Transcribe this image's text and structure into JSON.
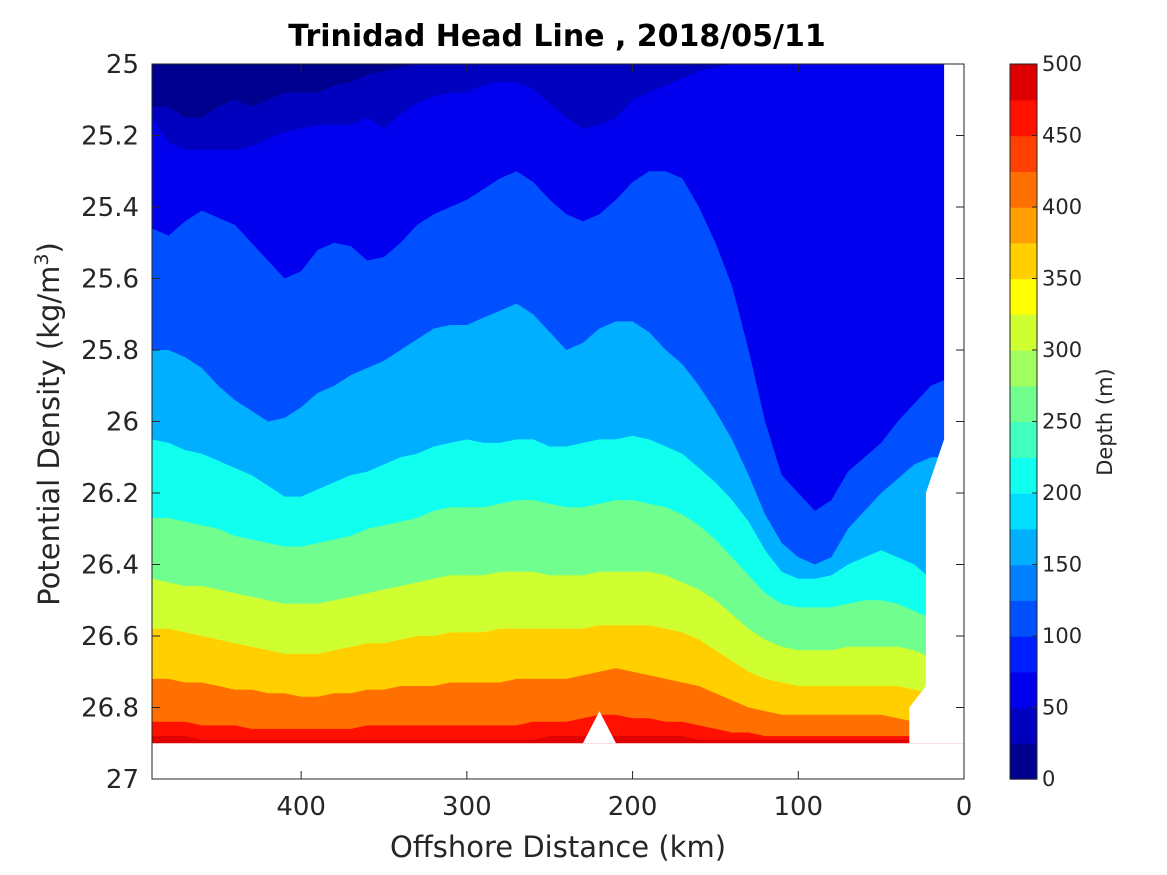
{
  "chart_data": {
    "type": "contour",
    "title": "Trinidad Head Line , 2018/05/11",
    "xlabel": "Offshore Distance (km)",
    "ylabel": "Potential Density (kg/m",
    "ylabel_sup": "3",
    "ylabel_close": ")",
    "xlim": [
      490,
      0
    ],
    "ylim": [
      25,
      27
    ],
    "x_reversed": true,
    "y_reversed": true,
    "xticks": [
      "400",
      "300",
      "200",
      "100",
      "0"
    ],
    "xtick_values": [
      400,
      300,
      200,
      100,
      0
    ],
    "yticks": [
      "25",
      "25.2",
      "25.4",
      "25.6",
      "25.8",
      "26",
      "26.2",
      "26.4",
      "26.6",
      "26.8",
      "27"
    ],
    "ytick_values": [
      25,
      25.2,
      25.4,
      25.6,
      25.8,
      26,
      26.2,
      26.4,
      26.6,
      26.8,
      27
    ],
    "colorbar": {
      "label": "Depth (m)",
      "range": [
        0,
        500
      ],
      "ticks": [
        "0",
        "50",
        "100",
        "150",
        "200",
        "250",
        "300",
        "350",
        "400",
        "450",
        "500"
      ],
      "tick_values": [
        0,
        50,
        100,
        150,
        200,
        250,
        300,
        350,
        400,
        450,
        500
      ],
      "levels": [
        0,
        25,
        50,
        75,
        100,
        125,
        150,
        175,
        200,
        225,
        250,
        275,
        300,
        325,
        350,
        375,
        400,
        425,
        450,
        475,
        500
      ],
      "colormap": "jet",
      "colors": [
        "#00008f",
        "#0000bf",
        "#0000ef",
        "#0020ff",
        "#0050ff",
        "#0080ff",
        "#00afff",
        "#00dfff",
        "#10ffef",
        "#40ffbf",
        "#70ff8f",
        "#9fff60",
        "#cfff30",
        "#ffff00",
        "#ffcf00",
        "#ff9f00",
        "#ff7000",
        "#ff4000",
        "#ff1000",
        "#df0000",
        "#af0000"
      ]
    },
    "profile_distances_km": [
      490,
      480,
      470,
      460,
      450,
      440,
      430,
      420,
      410,
      400,
      390,
      380,
      370,
      360,
      350,
      340,
      330,
      320,
      310,
      300,
      290,
      280,
      270,
      260,
      250,
      240,
      230,
      220,
      210,
      200,
      190,
      180,
      170,
      160,
      150,
      140,
      130,
      120,
      110,
      100,
      90,
      80,
      70,
      60,
      50,
      40,
      30,
      20,
      10
    ],
    "isopycnal_density_at_depth": {
      "depths_m": [
        25,
        50,
        100,
        150,
        200,
        250,
        300,
        350,
        400,
        450,
        475
      ],
      "rows": [
        [
          25.12,
          25.12,
          25.15,
          25.15,
          25.12,
          25.1,
          25.12,
          25.1,
          25.08,
          25.08,
          25.08,
          25.06,
          25.05,
          25.03,
          25.02,
          25.01,
          25.0,
          25.0,
          25.0,
          25.0,
          25.0,
          25.0,
          25.0,
          25.0,
          25.0,
          25.0,
          25.0,
          25.0,
          25.0,
          25.0,
          25.0,
          25.0,
          25.0,
          25.0,
          25.0,
          25.0,
          25.0,
          25.0,
          25.0,
          25.0,
          25.0,
          25.0,
          25.0,
          25.0,
          25.0,
          25.0,
          25.0,
          25.0,
          25.0
        ],
        [
          25.15,
          25.22,
          25.24,
          25.24,
          25.24,
          25.24,
          25.23,
          25.21,
          25.19,
          25.18,
          25.17,
          25.17,
          25.17,
          25.15,
          25.18,
          25.14,
          25.11,
          25.09,
          25.08,
          25.08,
          25.06,
          25.05,
          25.05,
          25.07,
          25.11,
          25.15,
          25.18,
          25.17,
          25.15,
          25.1,
          25.08,
          25.06,
          25.04,
          25.02,
          25.01,
          25.0,
          25.0,
          25.0,
          25.0,
          25.0,
          25.0,
          25.0,
          25.0,
          25.0,
          25.0,
          25.0,
          25.0,
          25.0,
          25.0
        ],
        [
          25.46,
          25.48,
          25.44,
          25.41,
          25.43,
          25.45,
          25.5,
          25.55,
          25.6,
          25.58,
          25.52,
          25.5,
          25.51,
          25.55,
          25.54,
          25.5,
          25.45,
          25.42,
          25.4,
          25.38,
          25.35,
          25.32,
          25.3,
          25.33,
          25.38,
          25.42,
          25.44,
          25.42,
          25.38,
          25.33,
          25.3,
          25.3,
          25.32,
          25.4,
          25.5,
          25.62,
          25.8,
          26.0,
          26.15,
          26.2,
          26.25,
          26.22,
          26.14,
          26.1,
          26.06,
          26.0,
          25.95,
          25.9,
          25.88
        ],
        [
          25.8,
          25.8,
          25.82,
          25.85,
          25.9,
          25.94,
          25.97,
          26.0,
          25.99,
          25.96,
          25.92,
          25.9,
          25.87,
          25.85,
          25.83,
          25.8,
          25.77,
          25.74,
          25.73,
          25.73,
          25.71,
          25.69,
          25.67,
          25.7,
          25.75,
          25.8,
          25.78,
          25.74,
          25.72,
          25.72,
          25.75,
          25.8,
          25.84,
          25.9,
          25.97,
          26.05,
          26.15,
          26.26,
          26.34,
          26.38,
          26.4,
          26.38,
          26.3,
          26.25,
          26.2,
          26.16,
          26.12,
          26.1,
          26.1
        ],
        [
          26.05,
          26.06,
          26.08,
          26.09,
          26.11,
          26.13,
          26.15,
          26.18,
          26.21,
          26.21,
          26.19,
          26.17,
          26.15,
          26.14,
          26.12,
          26.1,
          26.09,
          26.07,
          26.06,
          26.05,
          26.06,
          26.06,
          26.05,
          26.05,
          26.07,
          26.07,
          26.06,
          26.05,
          26.05,
          26.04,
          26.05,
          26.07,
          26.09,
          26.13,
          26.17,
          26.22,
          26.28,
          26.36,
          26.42,
          26.44,
          26.44,
          26.43,
          26.4,
          26.38,
          26.36,
          26.38,
          26.4,
          26.44,
          26.48
        ],
        [
          26.27,
          26.27,
          26.28,
          26.29,
          26.3,
          26.32,
          26.33,
          26.34,
          26.35,
          26.35,
          26.34,
          26.33,
          26.32,
          26.3,
          26.29,
          26.28,
          26.27,
          26.25,
          26.24,
          26.24,
          26.24,
          26.23,
          26.22,
          26.22,
          26.23,
          26.24,
          26.24,
          26.23,
          26.22,
          26.22,
          26.23,
          26.24,
          26.26,
          26.29,
          26.33,
          26.38,
          26.43,
          26.48,
          26.51,
          26.52,
          26.52,
          26.52,
          26.51,
          26.5,
          26.5,
          26.51,
          26.53,
          26.55,
          26.58
        ],
        [
          26.44,
          26.45,
          26.46,
          26.46,
          26.47,
          26.48,
          26.49,
          26.5,
          26.51,
          26.51,
          26.51,
          26.5,
          26.49,
          26.48,
          26.47,
          26.46,
          26.45,
          26.44,
          26.43,
          26.43,
          26.43,
          26.42,
          26.42,
          26.42,
          26.43,
          26.43,
          26.43,
          26.42,
          26.42,
          26.42,
          26.42,
          26.43,
          26.45,
          26.47,
          26.5,
          26.54,
          26.58,
          26.61,
          26.63,
          26.64,
          26.64,
          26.64,
          26.63,
          26.63,
          26.63,
          26.63,
          26.64,
          26.66,
          26.68
        ],
        [
          26.58,
          26.58,
          26.59,
          26.6,
          26.61,
          26.62,
          26.63,
          26.64,
          26.65,
          26.65,
          26.65,
          26.64,
          26.63,
          26.62,
          26.62,
          26.61,
          26.6,
          26.6,
          26.59,
          26.59,
          26.59,
          26.58,
          26.58,
          26.58,
          26.58,
          26.58,
          26.58,
          26.57,
          26.57,
          26.57,
          26.57,
          26.58,
          26.59,
          26.61,
          26.64,
          26.67,
          26.7,
          26.72,
          26.73,
          26.74,
          26.74,
          26.74,
          26.74,
          26.74,
          26.74,
          26.74,
          26.75,
          26.76,
          26.77
        ],
        [
          26.72,
          26.72,
          26.73,
          26.73,
          26.74,
          26.75,
          26.75,
          26.76,
          26.76,
          26.77,
          26.77,
          26.76,
          26.76,
          26.75,
          26.75,
          26.74,
          26.74,
          26.74,
          26.73,
          26.73,
          26.73,
          26.73,
          26.72,
          26.72,
          26.72,
          26.72,
          26.71,
          26.7,
          26.69,
          26.7,
          26.71,
          26.72,
          26.73,
          26.74,
          26.76,
          26.78,
          26.8,
          26.81,
          26.82,
          26.82,
          26.82,
          26.82,
          26.82,
          26.82,
          26.82,
          26.83,
          26.84,
          26.85,
          26.86
        ],
        [
          26.84,
          26.84,
          26.84,
          26.85,
          26.85,
          26.85,
          26.86,
          26.86,
          26.86,
          26.86,
          26.86,
          26.86,
          26.86,
          26.85,
          26.85,
          26.85,
          26.85,
          26.85,
          26.85,
          26.85,
          26.85,
          26.85,
          26.85,
          26.84,
          26.84,
          26.84,
          26.83,
          26.82,
          26.82,
          26.83,
          26.83,
          26.84,
          26.84,
          26.85,
          26.86,
          26.87,
          26.87,
          26.88,
          26.88,
          26.88,
          26.88,
          26.88,
          26.88,
          26.88,
          26.88,
          26.88,
          26.88,
          26.89,
          26.89
        ],
        [
          26.88,
          26.88,
          26.88,
          26.89,
          26.89,
          26.89,
          26.89,
          26.89,
          26.89,
          26.89,
          26.89,
          26.89,
          26.89,
          26.89,
          26.89,
          26.89,
          26.89,
          26.89,
          26.89,
          26.89,
          26.89,
          26.89,
          26.89,
          26.89,
          26.88,
          26.88,
          26.88,
          26.88,
          26.88,
          26.88,
          26.88,
          26.88,
          26.88,
          26.89,
          26.89,
          26.89,
          26.89,
          26.89,
          26.89,
          26.89,
          26.89,
          26.89,
          26.89,
          26.89,
          26.89,
          26.89,
          26.89,
          26.89,
          26.89
        ]
      ]
    },
    "data_extent": {
      "bottom_density": 26.9,
      "nearshore_boundary": [
        {
          "density": 25.0,
          "distance_km": 12
        },
        {
          "density": 26.05,
          "distance_km": 12
        },
        {
          "density": 26.2,
          "distance_km": 23
        },
        {
          "density": 26.74,
          "distance_km": 23
        },
        {
          "density": 26.8,
          "distance_km": 33
        },
        {
          "density": 26.9,
          "distance_km": 33
        }
      ],
      "bottom_notch": [
        {
          "density": 26.9,
          "distance_km": 230
        },
        {
          "density": 26.81,
          "distance_km": 220
        },
        {
          "density": 26.9,
          "distance_km": 210
        }
      ]
    }
  }
}
